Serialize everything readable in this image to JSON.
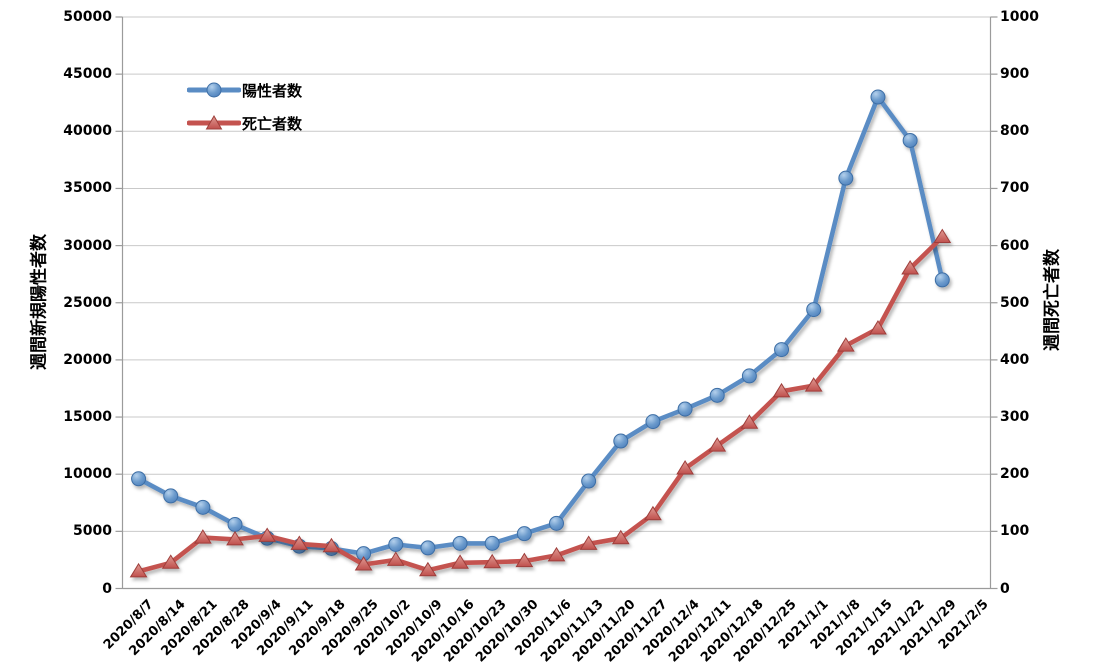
{
  "chart_data": {
    "type": "line",
    "title": "",
    "xlabel": "",
    "ylabel_left": "週間新規陽性者数",
    "ylabel_right": "週間死亡者数",
    "grid": true,
    "legend_position": "inside-top-left",
    "categories": [
      "2020/8/7",
      "2020/8/14",
      "2020/8/21",
      "2020/8/28",
      "2020/9/4",
      "2020/9/11",
      "2020/9/18",
      "2020/9/25",
      "2020/10/2",
      "2020/10/9",
      "2020/10/16",
      "2020/10/23",
      "2020/10/30",
      "2020/11/6",
      "2020/11/13",
      "2020/11/20",
      "2020/11/27",
      "2020/12/4",
      "2020/12/11",
      "2020/12/18",
      "2020/12/25",
      "2021/1/1",
      "2021/1/8",
      "2021/1/15",
      "2021/1/22",
      "2021/1/29",
      "2021/2/5"
    ],
    "y_left": {
      "min": 0,
      "max": 50000,
      "step": 5000,
      "ticks": [
        "0",
        "5000",
        "10000",
        "15000",
        "20000",
        "25000",
        "30000",
        "35000",
        "40000",
        "45000",
        "50000"
      ]
    },
    "y_right": {
      "min": 0,
      "max": 1000,
      "step": 100,
      "ticks": [
        "0",
        "100",
        "200",
        "300",
        "400",
        "500",
        "600",
        "700",
        "800",
        "900",
        "1000"
      ]
    },
    "series": [
      {
        "name": "陽性者数",
        "axis": "left",
        "marker": "circle",
        "color": "#5A8CC4",
        "marker_stroke": "#3D6EA5",
        "values": [
          9600,
          8100,
          7100,
          5600,
          4400,
          3700,
          3500,
          3050,
          3850,
          3550,
          3950,
          3950,
          4800,
          5700,
          9400,
          12900,
          14600,
          15700,
          16900,
          18600,
          20900,
          24400,
          35900,
          43000,
          39200,
          27000,
          null
        ]
      },
      {
        "name": "死亡者数",
        "axis": "right",
        "marker": "triangle",
        "color": "#C4534F",
        "marker_stroke": "#9E3E3A",
        "values": [
          30,
          45,
          89,
          86,
          92,
          78,
          74,
          42,
          50,
          32,
          45,
          46,
          48,
          58,
          78,
          88,
          130,
          210,
          250,
          290,
          345,
          355,
          425,
          455,
          560,
          615,
          null
        ]
      }
    ],
    "grid_color": "#C9C9C9",
    "axis_color": "#9B9B9B"
  }
}
